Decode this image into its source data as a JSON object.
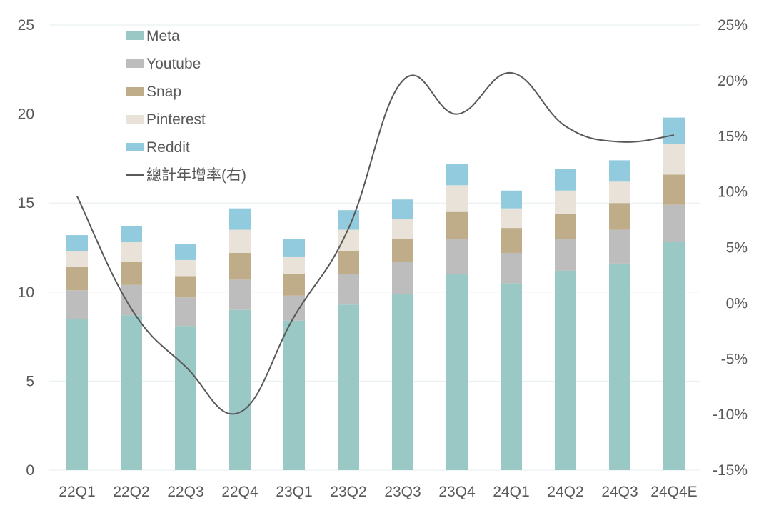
{
  "chart_data": {
    "type": "bar",
    "subtype": "stacked-bar-with-line",
    "title": "",
    "xlabel": "",
    "ylabel": "",
    "y2label": "",
    "categories": [
      "22Q1",
      "22Q2",
      "22Q3",
      "22Q4",
      "23Q1",
      "23Q2",
      "23Q3",
      "23Q4",
      "24Q1",
      "24Q2",
      "24Q3",
      "24Q4E"
    ],
    "ylim": [
      0,
      25
    ],
    "yticks": [
      0,
      5,
      10,
      15,
      20,
      25
    ],
    "y2lim": [
      -15,
      25
    ],
    "y2ticks": [
      "-15%",
      "-10%",
      "-5%",
      "0%",
      "5%",
      "10%",
      "15%",
      "20%",
      "25%"
    ],
    "y2tick_values": [
      -15,
      -10,
      -5,
      0,
      5,
      10,
      15,
      20,
      25
    ],
    "grid": true,
    "legend_position": "top-left",
    "series": [
      {
        "name": "Meta",
        "type": "bar",
        "color": "#9AC8C4",
        "values": [
          8.5,
          8.7,
          8.1,
          9.0,
          8.4,
          9.3,
          9.9,
          11.0,
          10.5,
          11.2,
          11.6,
          12.8
        ]
      },
      {
        "name": "Youtube",
        "type": "bar",
        "color": "#BDBDBD",
        "values": [
          1.6,
          1.7,
          1.6,
          1.7,
          1.4,
          1.7,
          1.8,
          2.0,
          1.7,
          1.8,
          1.9,
          2.1
        ]
      },
      {
        "name": "Snap",
        "type": "bar",
        "color": "#BFAD8A",
        "values": [
          1.3,
          1.3,
          1.2,
          1.5,
          1.2,
          1.3,
          1.3,
          1.5,
          1.4,
          1.4,
          1.5,
          1.7
        ]
      },
      {
        "name": "Pinterest",
        "type": "bar",
        "color": "#E8E2D8",
        "values": [
          0.9,
          1.1,
          0.9,
          1.3,
          1.0,
          1.2,
          1.1,
          1.5,
          1.1,
          1.3,
          1.2,
          1.7
        ]
      },
      {
        "name": "Reddit",
        "type": "bar",
        "color": "#92CBDD",
        "values": [
          0.9,
          0.9,
          0.9,
          1.2,
          1.0,
          1.1,
          1.1,
          1.2,
          1.0,
          1.2,
          1.2,
          1.5
        ]
      },
      {
        "name": "總計年增率(右)",
        "type": "line",
        "axis": "right",
        "color": "#595959",
        "values": [
          9.6,
          -0.5,
          -5.7,
          -9.8,
          -1.2,
          6.7,
          20.0,
          17.0,
          20.7,
          15.9,
          14.5,
          15.1
        ]
      }
    ]
  }
}
